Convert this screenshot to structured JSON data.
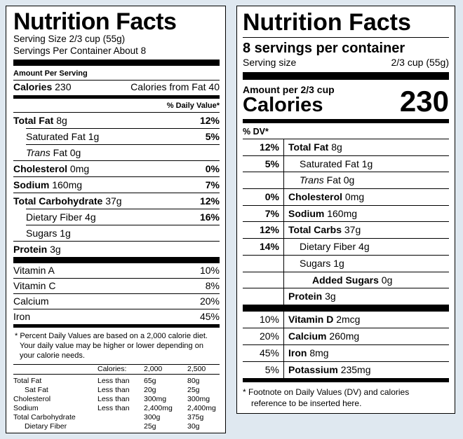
{
  "old_label": {
    "title": "Nutrition Facts",
    "serving_size": "Serving Size 2/3 cup (55g)",
    "servings_per_container": "Servings Per Container About 8",
    "amount_per_serving": "Amount Per Serving",
    "calories_label": "Calories",
    "calories_value": "230",
    "calories_from_fat": "Calories from Fat 40",
    "dv_header": "% Daily Value*",
    "nutrients": [
      {
        "name": "Total Fat",
        "amount": "8g",
        "dv": "12%"
      },
      {
        "name": "Saturated Fat",
        "amount": "1g",
        "dv": "5%"
      },
      {
        "name": "Trans",
        "amount": "Fat 0g",
        "dv": ""
      },
      {
        "name": "Cholesterol",
        "amount": "0mg",
        "dv": "0%"
      },
      {
        "name": "Sodium",
        "amount": "160mg",
        "dv": "7%"
      },
      {
        "name": "Total Carbohydrate",
        "amount": "37g",
        "dv": "12%"
      },
      {
        "name": "Dietary Fiber",
        "amount": "4g",
        "dv": "16%"
      },
      {
        "name": "Sugars",
        "amount": "1g",
        "dv": ""
      },
      {
        "name": "Protein",
        "amount": "3g",
        "dv": ""
      }
    ],
    "vitamins": [
      {
        "name": "Vitamin A",
        "dv": "10%"
      },
      {
        "name": "Vitamin C",
        "dv": "8%"
      },
      {
        "name": "Calcium",
        "dv": "20%"
      },
      {
        "name": "Iron",
        "dv": "45%"
      }
    ],
    "footnote_line1": "* Percent Daily Values are based on a 2,000 calorie diet.",
    "footnote_line2": "Your daily value may be higher or lower depending on",
    "footnote_line3": "your calorie needs.",
    "dv_table": {
      "header": [
        "",
        "Calories:",
        "2,000",
        "2,500"
      ],
      "rows": [
        [
          "Total Fat",
          "Less than",
          "65g",
          "80g"
        ],
        [
          "Sat Fat",
          "Less than",
          "20g",
          "25g"
        ],
        [
          "Cholesterol",
          "Less than",
          "300mg",
          "300mg"
        ],
        [
          "Sodium",
          "Less than",
          "2,400mg",
          "2,400mg"
        ],
        [
          "Total Carbohydrate",
          "",
          "300g",
          "375g"
        ],
        [
          "Dietary Fiber",
          "",
          "25g",
          "30g"
        ]
      ]
    }
  },
  "new_label": {
    "title": "Nutrition Facts",
    "servings": "8 servings per container",
    "serving_size_label": "Serving size",
    "serving_size_value": "2/3 cup (55g)",
    "amount_per": "Amount per 2/3 cup",
    "calories_label": "Calories",
    "calories_value": "230",
    "dv_header": "% DV*",
    "nutrients": [
      {
        "dv": "12%",
        "name": "Total Fat",
        "amount": "8g"
      },
      {
        "dv": "5%",
        "name": "Saturated Fat",
        "amount": "1g"
      },
      {
        "dv": "",
        "name": "Trans",
        "amount": "Fat 0g"
      },
      {
        "dv": "0%",
        "name": "Cholesterol",
        "amount": "0mg"
      },
      {
        "dv": "7%",
        "name": "Sodium",
        "amount": "160mg"
      },
      {
        "dv": "12%",
        "name": "Total Carbs",
        "amount": "37g"
      },
      {
        "dv": "14%",
        "name": "Dietary Fiber",
        "amount": "4g"
      },
      {
        "dv": "",
        "name": "Sugars",
        "amount": "1g"
      },
      {
        "dv": "",
        "name": "Added Sugars",
        "amount": "0g"
      },
      {
        "dv": "",
        "name": "Protein",
        "amount": "3g"
      }
    ],
    "vitamins": [
      {
        "dv": "10%",
        "name": "Vitamin D",
        "amount": "2mcg"
      },
      {
        "dv": "20%",
        "name": "Calcium",
        "amount": "260mg"
      },
      {
        "dv": "45%",
        "name": "Iron",
        "amount": "8mg"
      },
      {
        "dv": "5%",
        "name": "Potassium",
        "amount": "235mg"
      }
    ],
    "footnote_line1": "* Footnote on Daily Values (DV) and calories",
    "footnote_line2": "reference to be inserted here."
  }
}
